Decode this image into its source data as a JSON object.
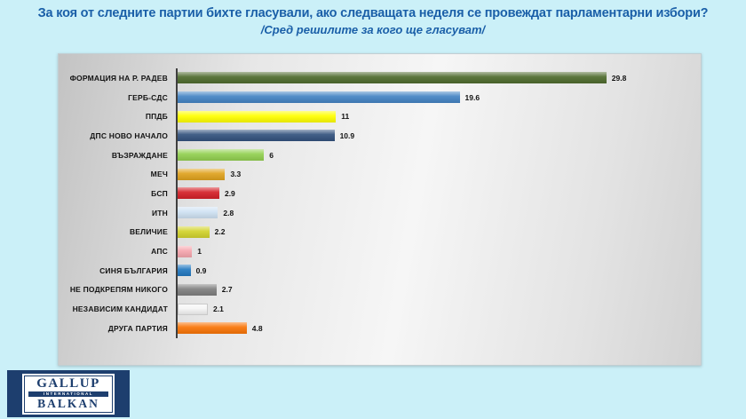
{
  "page": {
    "title": "За коя от следните партии бихте гласували, ако следващата неделя се провеждат парламентарни избори?",
    "subtitle": "/Сред решилите за кого ще гласуват/"
  },
  "chart_data": {
    "type": "bar",
    "orientation": "horizontal",
    "title": "За коя от следните партии бихте гласували, ако следващата неделя се провеждат парламентарни избори?",
    "subtitle": "/Сред решилите за кого ще гласуват/",
    "categories": [
      "ФОРМАЦИЯ НА Р. РАДЕВ",
      "ГЕРБ-СДС",
      "ППДБ",
      "ДПС НОВО НАЧАЛО",
      "ВЪЗРАЖДАНЕ",
      "МЕЧ",
      "БСП",
      "ИТН",
      "ВЕЛИЧИЕ",
      "АПС",
      "СИНЯ БЪЛГАРИЯ",
      "НЕ ПОДКРЕПЯМ НИКОГО",
      "НЕЗАВИСИМ КАНДИДАТ",
      "ДРУГА ПАРТИЯ"
    ],
    "values": [
      29.8,
      19.6,
      11,
      10.9,
      6,
      3.3,
      2.9,
      2.8,
      2.2,
      1,
      0.9,
      2.7,
      2.1,
      4.8
    ],
    "value_labels": [
      "29.8",
      "19.6",
      "11",
      "10.9",
      "6",
      "3.3",
      "2.9",
      "2.8",
      "2.2",
      "1",
      "0.9",
      "2.7",
      "2.1",
      "4.8"
    ],
    "bar_colors": [
      "#4f6b2e",
      "#4484c4",
      "#ffff00",
      "#33527e",
      "#92d050",
      "#dfa21e",
      "#d42028",
      "#cfe2f3",
      "#d2d32c",
      "#f6a6ae",
      "#2178c0",
      "#7f7f7f",
      "#f5f5f5",
      "#f97406"
    ],
    "bar_borders": [
      "none",
      "none",
      "none",
      "none",
      "none",
      "none",
      "none",
      "none",
      "none",
      "none",
      "none",
      "none",
      "1px solid #c9c9c9",
      "none"
    ],
    "xlim": [
      0,
      30
    ],
    "grid": false,
    "legend": false,
    "value_labels_position": "end-of-bar"
  },
  "logo": {
    "line1": "GALLUP",
    "line2": "INTERNATIONAL",
    "line3": "BALKAN"
  },
  "colors": {
    "background": "#cbf0f8",
    "title_text": "#1a5fa8",
    "axis_line": "#3f3f3f",
    "panel_border": "#c2ced2",
    "logo_navy": "#1d3e6e"
  }
}
